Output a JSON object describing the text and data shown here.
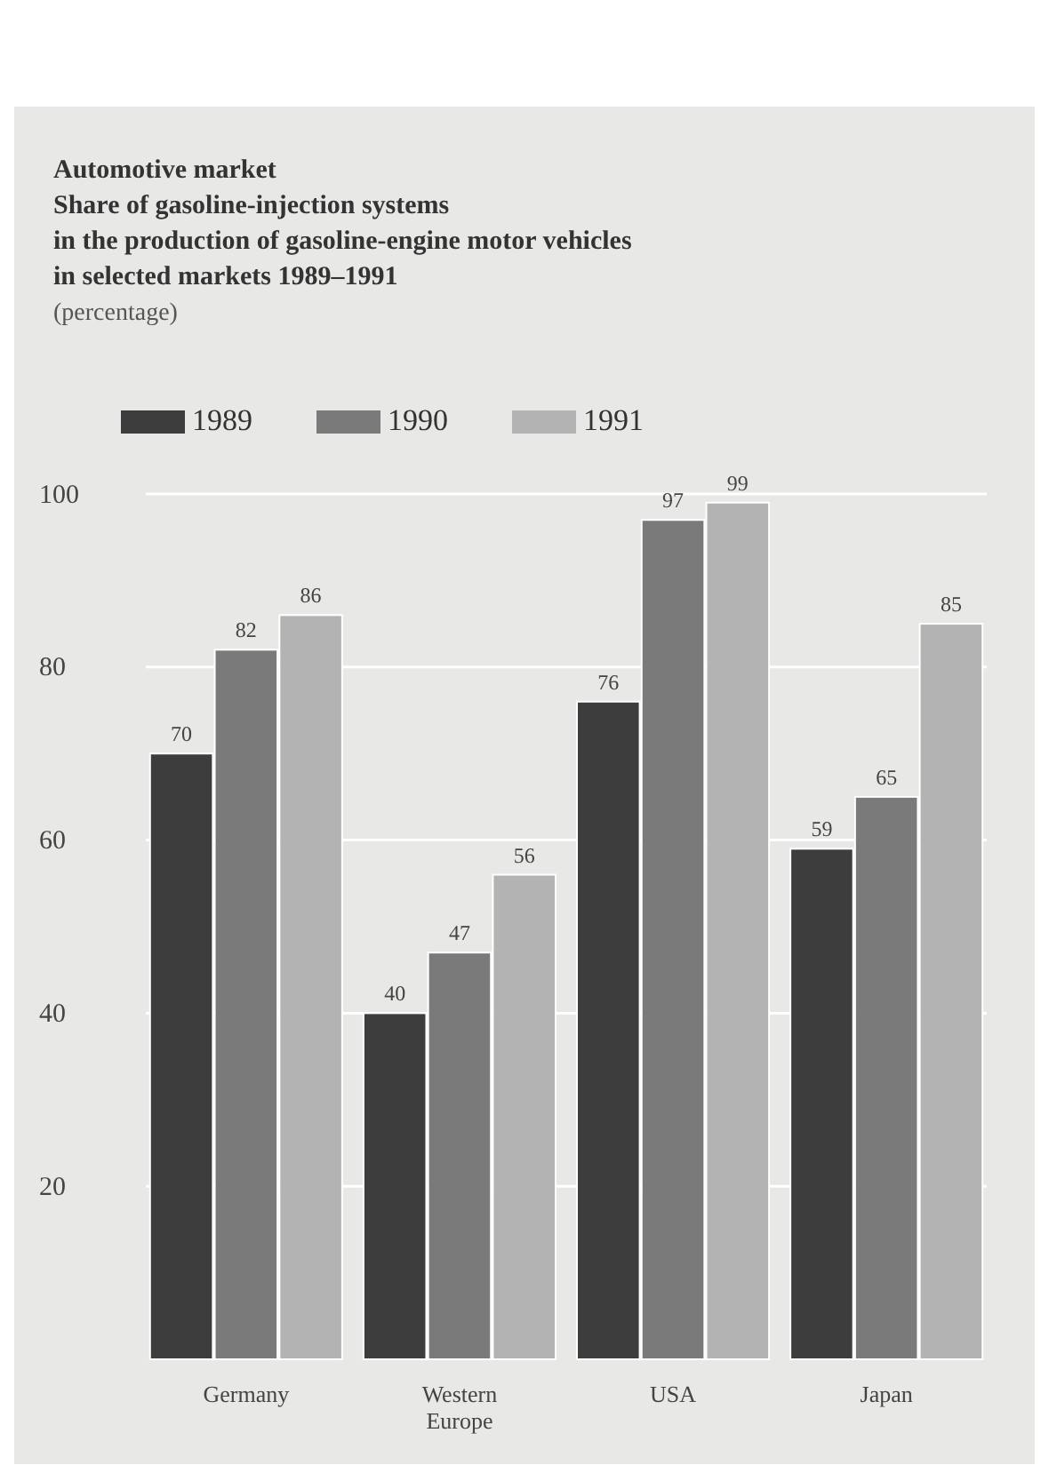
{
  "chart_data": {
    "type": "bar",
    "title": "Automotive market",
    "subtitle": "Share of gasoline-injection systems\nin the production of gasoline-engine motor vehicles\nin selected markets 1989–1991",
    "annotations": [
      "(percentage)"
    ],
    "categories": [
      "Germany",
      "Western\nEurope",
      "USA",
      "Japan"
    ],
    "series": [
      {
        "name": "1989",
        "color": "#3d3d3d",
        "values": [
          70,
          40,
          76,
          59
        ]
      },
      {
        "name": "1990",
        "color": "#7a7a7a",
        "values": [
          82,
          47,
          97,
          65
        ]
      },
      {
        "name": "1991",
        "color": "#b3b3b3",
        "values": [
          86,
          56,
          99,
          85
        ]
      }
    ],
    "ylim": [
      0,
      100
    ],
    "yticks": [
      20,
      40,
      60,
      80,
      100
    ],
    "grid": "y",
    "legend": "top left",
    "data_labels": true
  }
}
